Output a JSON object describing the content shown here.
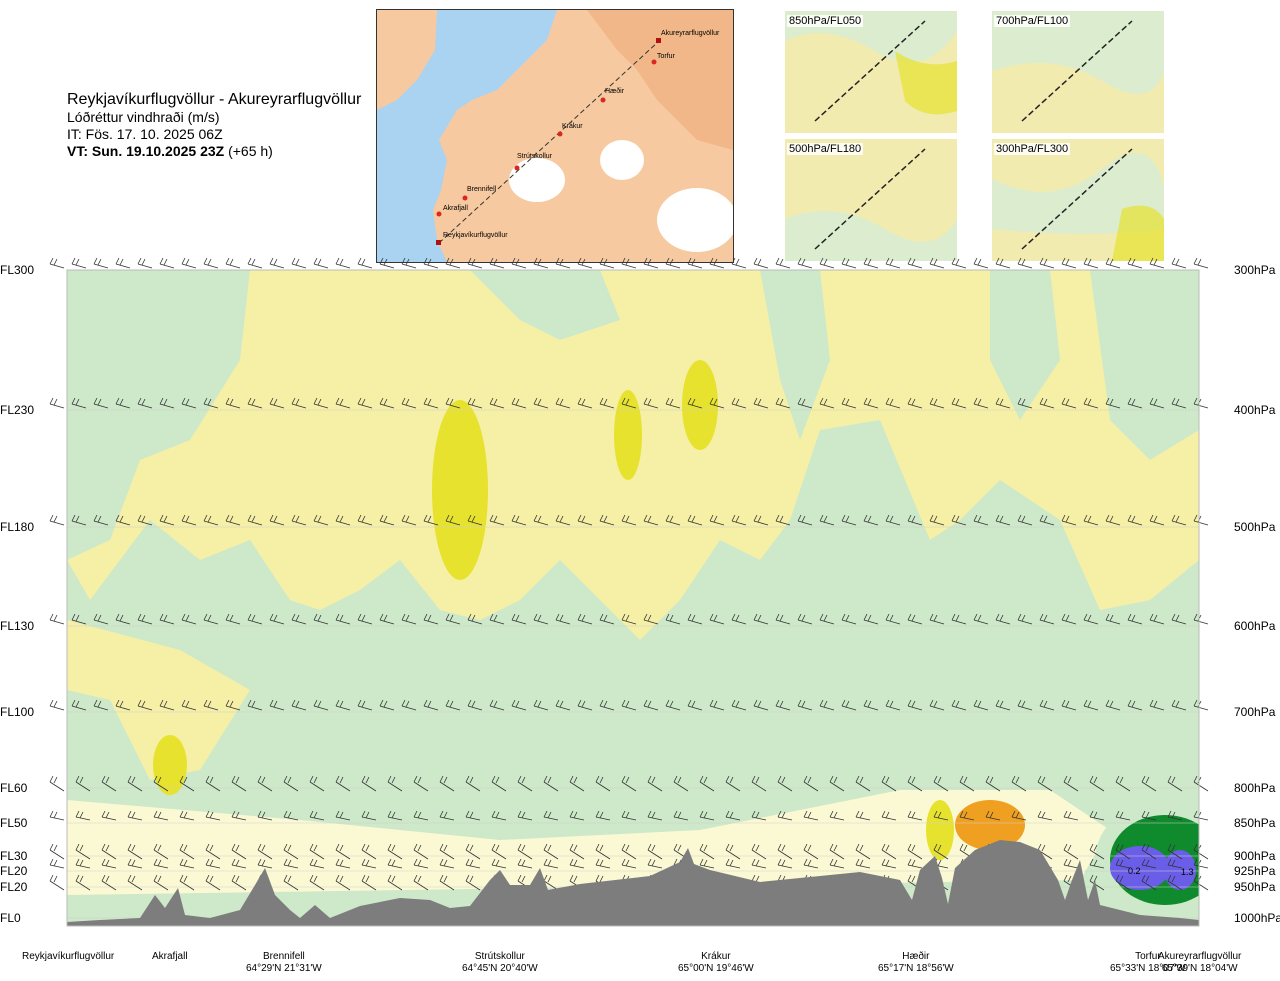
{
  "title": {
    "route": "Reykjavíkurflugvöllur - Akureyrarflugvöllur",
    "param": "Lóðréttur vindhraði (m/s)",
    "issued": "IT: Fös. 17. 10. 2025 06Z",
    "valid_bold": "VT: Sun. 19.10.2025 23Z",
    "valid_offset": "(+65 h)"
  },
  "map": {
    "places": [
      "Akureyrarflugvöllur",
      "Torfur",
      "Hæðir",
      "Krákur",
      "Strútskollur",
      "Brennifell",
      "Akrafjall",
      "Reykjavíkurflugvöllur"
    ]
  },
  "thumbnails": [
    "850hPa/FL050",
    "700hPa/FL100",
    "500hPa/FL180",
    "300hPa/FL300"
  ],
  "colors": {
    "positive_strong": "#e6e22e",
    "positive": "#f6efa6",
    "positive_light": "#fbf8d4",
    "negative_light": "#e9f6e2",
    "negative": "#cde9c9",
    "negative_strong": "#0f8a2c",
    "orange": "#f0a020",
    "blue": "#6a5de8",
    "terrain": "#7d7d7d"
  },
  "chart_data": {
    "type": "heatmap",
    "title": "Lóðréttur vindhraði (m/s)",
    "flight_levels": [
      "FL300",
      "FL230",
      "FL180",
      "FL130",
      "FL100",
      "FL60",
      "FL50",
      "FL30",
      "FL20",
      "FL20",
      "FL0"
    ],
    "pressure_levels": [
      "300hPa",
      "400hPa",
      "500hPa",
      "600hPa",
      "700hPa",
      "800hPa",
      "850hPa",
      "900hPa",
      "925hPa",
      "950hPa",
      "1000hPa"
    ],
    "locations": [
      {
        "name": "Reykjavíkurflugvöllur",
        "coord": ""
      },
      {
        "name": "Akrafjall",
        "coord": ""
      },
      {
        "name": "Brennifell",
        "coord": "64°29'N 21°31'W"
      },
      {
        "name": "Strútskollur",
        "coord": "64°45'N 20°40'W"
      },
      {
        "name": "Krákur",
        "coord": "65°00'N 19°46'W"
      },
      {
        "name": "Hæðir",
        "coord": "65°17'N 18°56'W"
      },
      {
        "name": "Torfur",
        "coord": "65°33'N 18°07'W"
      },
      {
        "name": "Akureyrarflugvöllur",
        "coord": "65°39'N 18°04'W"
      }
    ],
    "contour_labels": [
      "0.2",
      "1.3"
    ]
  }
}
